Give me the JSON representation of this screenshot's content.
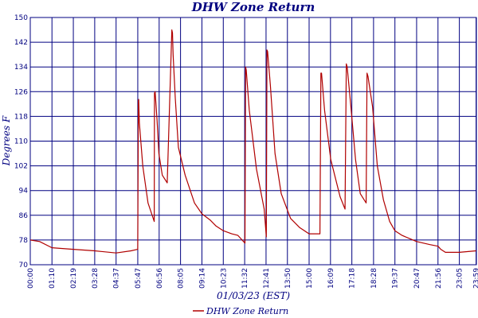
{
  "chart_data": {
    "type": "line",
    "title": "DHW Zone Return",
    "xlabel": "01/03/23 (EST)",
    "ylabel": "Degrees F",
    "ylim": [
      70,
      150
    ],
    "yticks": [
      "70",
      "78",
      "86",
      "94",
      "102",
      "110",
      "118",
      "126",
      "134",
      "142",
      "150"
    ],
    "xticks": [
      "00:00",
      "01:10",
      "02:19",
      "03:28",
      "04:37",
      "05:47",
      "06:56",
      "08:05",
      "09:14",
      "10:23",
      "11:32",
      "12:41",
      "13:50",
      "15:00",
      "16:09",
      "17:18",
      "18:28",
      "19:37",
      "20:47",
      "21:56",
      "23:05",
      "23:59"
    ],
    "grid": true,
    "legend_position": "bottom-center",
    "colors": {
      "series": "#b00000",
      "grid": "#000080",
      "text": "#000080"
    },
    "series": [
      {
        "name": "DHW Zone Return",
        "x": [
          "00:00",
          "00:30",
          "01:10",
          "02:19",
          "03:28",
          "04:37",
          "05:25",
          "05:47",
          "05:49",
          "05:50",
          "05:52",
          "06:03",
          "06:20",
          "06:40",
          "06:41",
          "06:43",
          "06:49",
          "06:55",
          "07:06",
          "07:22",
          "07:37",
          "07:39",
          "07:41",
          "07:48",
          "07:58",
          "08:20",
          "08:50",
          "09:14",
          "09:40",
          "10:00",
          "10:23",
          "10:50",
          "11:10",
          "11:33",
          "11:35",
          "11:37",
          "11:47",
          "12:10",
          "12:35",
          "12:42",
          "12:44",
          "12:46",
          "12:55",
          "13:10",
          "13:30",
          "14:00",
          "14:30",
          "15:00",
          "15:35",
          "15:38",
          "15:40",
          "15:50",
          "16:10",
          "16:40",
          "16:56",
          "17:00",
          "17:03",
          "17:15",
          "17:30",
          "17:45",
          "18:04",
          "18:07",
          "18:10",
          "18:25",
          "18:40",
          "19:00",
          "19:20",
          "19:37",
          "20:00",
          "20:47",
          "21:30",
          "21:56",
          "22:05",
          "22:20",
          "23:05",
          "23:59"
        ],
        "values": [
          78,
          77.5,
          75.5,
          75,
          74.5,
          73.8,
          74.5,
          75,
          123,
          123.5,
          116,
          102,
          90,
          84,
          125.5,
          126,
          117,
          106,
          99,
          96.5,
          146,
          145,
          138,
          124,
          108,
          99,
          90,
          86.5,
          84.5,
          82.5,
          81,
          80,
          79.5,
          77,
          134,
          133,
          120,
          101,
          88,
          79,
          139.5,
          139,
          128,
          106,
          93,
          85,
          82,
          80,
          80,
          132,
          132,
          120,
          104,
          92,
          88,
          135,
          134,
          121,
          104,
          93,
          90,
          132,
          131,
          121,
          102,
          91,
          84,
          81,
          79.5,
          77.5,
          76.5,
          76,
          75,
          74,
          74,
          74.5
        ]
      }
    ]
  }
}
